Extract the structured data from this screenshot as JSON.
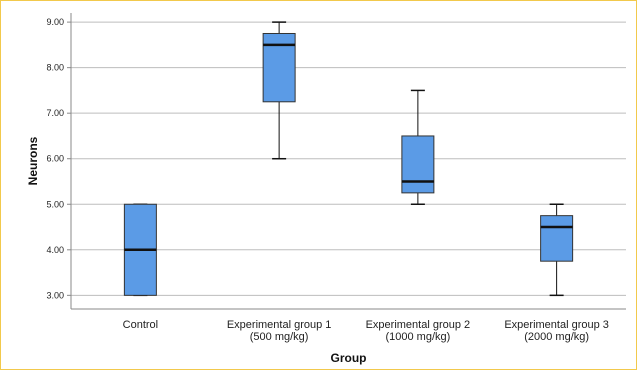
{
  "chart_data": {
    "type": "box",
    "title": "",
    "xlabel": "Group",
    "ylabel": "Neurons",
    "ylim": [
      2.7,
      9.2
    ],
    "yticks": [
      "3.00",
      "4.00",
      "5.00",
      "6.00",
      "7.00",
      "8.00",
      "9.00"
    ],
    "grid": true,
    "box_color": "#5b9be6",
    "categories": [
      {
        "line1": "Control",
        "line2": ""
      },
      {
        "line1": "Experimental group 1",
        "line2": "(500 mg/kg)"
      },
      {
        "line1": "Experimental group 2",
        "line2": "(1000 mg/kg)"
      },
      {
        "line1": "Experimental group 3",
        "line2": "(2000 mg/kg)"
      }
    ],
    "boxes": [
      {
        "min": 3.0,
        "q1": 3.0,
        "median": 4.0,
        "q3": 5.0,
        "max": 5.0
      },
      {
        "min": 6.0,
        "q1": 7.25,
        "median": 8.5,
        "q3": 8.75,
        "max": 9.0
      },
      {
        "min": 5.0,
        "q1": 5.25,
        "median": 5.5,
        "q3": 6.5,
        "max": 7.5
      },
      {
        "min": 3.0,
        "q1": 3.75,
        "median": 4.5,
        "q3": 4.75,
        "max": 5.0
      }
    ]
  }
}
